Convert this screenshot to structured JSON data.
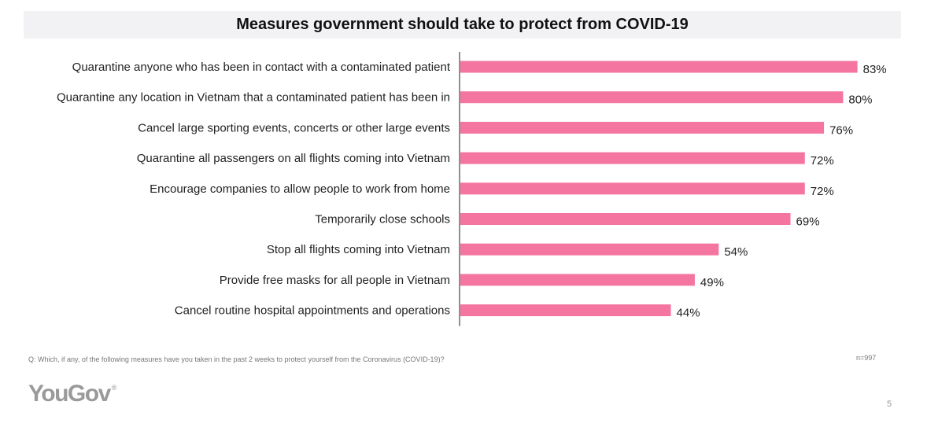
{
  "slide": {
    "question": "Q: Which, if any, of the following measures have you taken in the past 2 weeks to protect yourself from the Coronavirus (COVID-19)?",
    "sample": "n=997",
    "logo": "YouGov",
    "logo_mark": "®",
    "page_number": "5"
  },
  "chart_data": {
    "type": "bar",
    "orientation": "horizontal",
    "title": "Measures government should take to protect from COVID-19",
    "categories": [
      "Quarantine anyone who has been in contact with a contaminated patient",
      "Quarantine any location in Vietnam that a contaminated patient has been in",
      "Cancel large sporting events, concerts or other large events",
      "Quarantine all passengers on all flights coming into Vietnam",
      "Encourage companies to allow people to work from home",
      "Temporarily close schools",
      "Stop all flights coming into Vietnam",
      "Provide free masks for all people in Vietnam",
      "Cancel routine hospital appointments and operations"
    ],
    "values": [
      83,
      80,
      76,
      72,
      72,
      69,
      54,
      49,
      44
    ],
    "value_labels": [
      "83%",
      "80%",
      "76%",
      "72%",
      "72%",
      "69%",
      "54%",
      "49%",
      "44%"
    ],
    "bar_color": "#f4759f",
    "xlim": [
      0,
      100
    ],
    "grid": false,
    "legend": "none"
  }
}
